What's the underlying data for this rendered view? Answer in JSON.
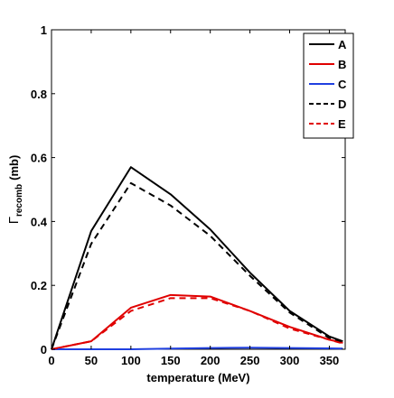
{
  "chart_data": {
    "type": "line",
    "title": "",
    "xlabel": "temperature (MeV)",
    "ylabel": {
      "symbol": "Γ",
      "subscript": "recomb",
      "unit": "(mb)"
    },
    "xlim": [
      0,
      370
    ],
    "ylim": [
      0,
      1
    ],
    "x_ticks": [
      0,
      50,
      100,
      150,
      200,
      250,
      300,
      350
    ],
    "y_ticks": [
      0,
      0.2,
      0.4,
      0.6,
      0.8,
      1
    ],
    "x_tick_labels": [
      "0",
      "50",
      "100",
      "150",
      "200",
      "250",
      "300",
      "350"
    ],
    "y_tick_labels": [
      "0",
      "0.2",
      "0.4",
      "0.6",
      "0.8",
      "1"
    ],
    "grid": false,
    "legend_position": "top-right",
    "series": [
      {
        "name": "A",
        "color": "#000000",
        "dash": "solid",
        "x": [
          0,
          50,
          100,
          150,
          200,
          250,
          300,
          350,
          367
        ],
        "y": [
          0,
          0.37,
          0.57,
          0.485,
          0.375,
          0.24,
          0.12,
          0.04,
          0.025
        ]
      },
      {
        "name": "B",
        "color": "#e00000",
        "dash": "solid",
        "x": [
          0,
          50,
          100,
          150,
          200,
          250,
          300,
          350,
          367
        ],
        "y": [
          0,
          0.025,
          0.13,
          0.17,
          0.165,
          0.12,
          0.07,
          0.03,
          0.02
        ]
      },
      {
        "name": "C",
        "color": "#2040e0",
        "dash": "solid",
        "x": [
          0,
          50,
          100,
          150,
          200,
          250,
          300,
          350,
          367
        ],
        "y": [
          0,
          0,
          0,
          0.002,
          0.004,
          0.005,
          0.004,
          0.003,
          0.002
        ]
      },
      {
        "name": "D",
        "color": "#000000",
        "dash": "dashed",
        "x": [
          0,
          50,
          100,
          150,
          200,
          250,
          300,
          350,
          367
        ],
        "y": [
          0,
          0.33,
          0.52,
          0.45,
          0.355,
          0.23,
          0.115,
          0.035,
          0.02
        ]
      },
      {
        "name": "E",
        "color": "#e00000",
        "dash": "dashed",
        "x": [
          0,
          50,
          100,
          150,
          200,
          250,
          300,
          350,
          367
        ],
        "y": [
          0,
          0.025,
          0.12,
          0.16,
          0.16,
          0.12,
          0.065,
          0.03,
          0.018
        ]
      }
    ]
  }
}
